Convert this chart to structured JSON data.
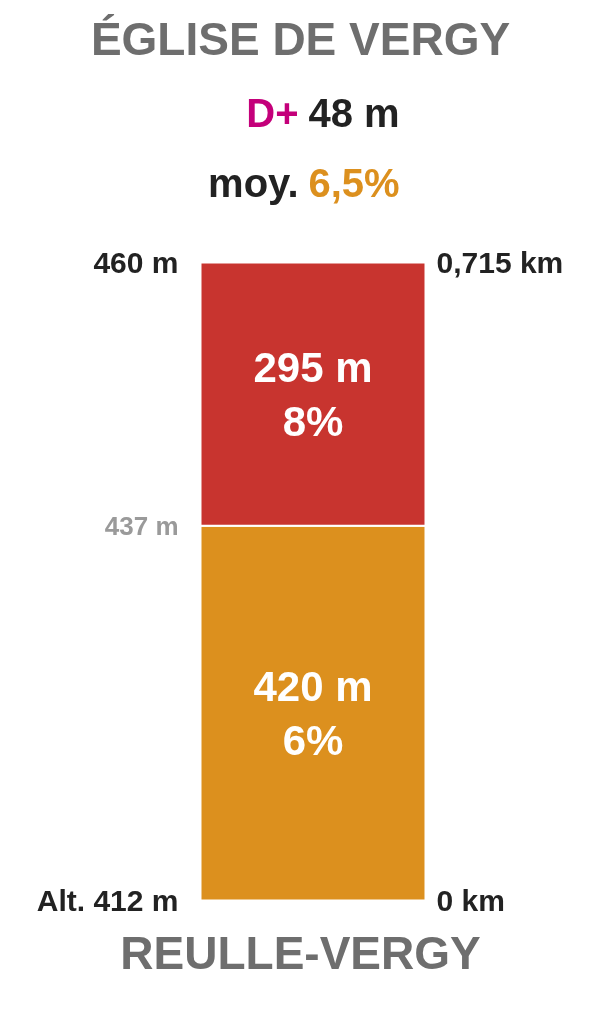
{
  "chart_data": {
    "type": "bar",
    "stacked": true,
    "title": "ÉGLISE DE VERGY",
    "subtitle": "D+ 48 m",
    "annotations": [
      "moy. 6,5%",
      "Alt. 412 m",
      "437 m",
      "460 m",
      "0 km",
      "0,715 km"
    ],
    "xlabel": "REULLE-VERGY",
    "categories": [
      null
    ],
    "series": [
      {
        "color": "#dc901e",
        "values": [
          420
        ],
        "value_labels": [
          "420 m\n6%"
        ]
      },
      {
        "color": "#c8342f",
        "values": [
          295
        ],
        "value_labels": [
          "295 m\n8%"
        ]
      }
    ],
    "ylim": [
      0,
      715
    ],
    "grid": false
  }
}
